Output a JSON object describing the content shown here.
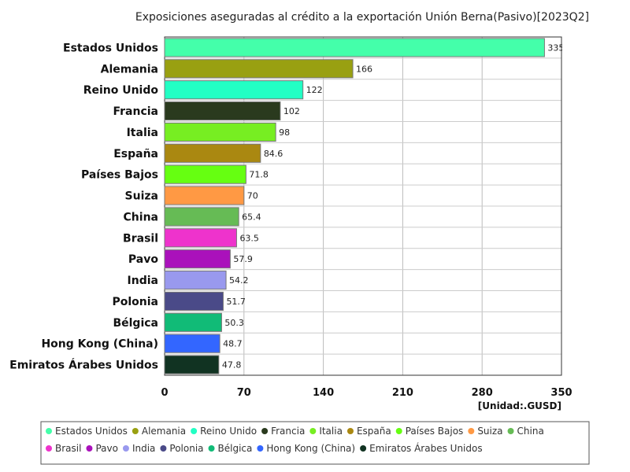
{
  "chart_data": {
    "type": "bar",
    "orientation": "horizontal",
    "title": "Exposiciones aseguradas al crédito a la exportación Unión Berna(Pasivo)[2023Q2]",
    "unit_label": "[Unidad:.GUSD]",
    "xlim": [
      0,
      350
    ],
    "ticks": [
      0,
      70,
      140,
      210,
      280,
      350
    ],
    "tick_labels": [
      "0",
      "70",
      "140",
      "210",
      "280",
      "350"
    ],
    "grid": true,
    "legend_position": "bottom",
    "categories": [
      "Estados Unidos",
      "Alemania",
      "Reino Unido",
      "Francia",
      "Italia",
      "España",
      "Países Bajos",
      "Suiza",
      "China",
      "Brasil",
      "Pavo",
      "India",
      "Polonia",
      "Bélgica",
      "Hong Kong (China)",
      "Emiratos Árabes Unidos"
    ],
    "values": [
      335,
      166,
      122,
      102,
      98,
      84.6,
      71.8,
      70,
      65.4,
      63.5,
      57.9,
      54.2,
      51.7,
      50.3,
      48.7,
      47.8
    ],
    "value_labels": [
      "335",
      "166",
      "122",
      "102",
      "98",
      "84.6",
      "71.8",
      "70",
      "65.4",
      "63.5",
      "57.9",
      "54.2",
      "51.7",
      "50.3",
      "48.7",
      "47.8"
    ],
    "colors": [
      "#44ffaa",
      "#99a011",
      "#22ffc4",
      "#2a3a1e",
      "#77ee22",
      "#aa8811",
      "#66ff11",
      "#ff9944",
      "#66bb55",
      "#ee33cc",
      "#aa11bb",
      "#9999ee",
      "#4a4a88",
      "#11bb77",
      "#3366ff",
      "#113322"
    ]
  }
}
